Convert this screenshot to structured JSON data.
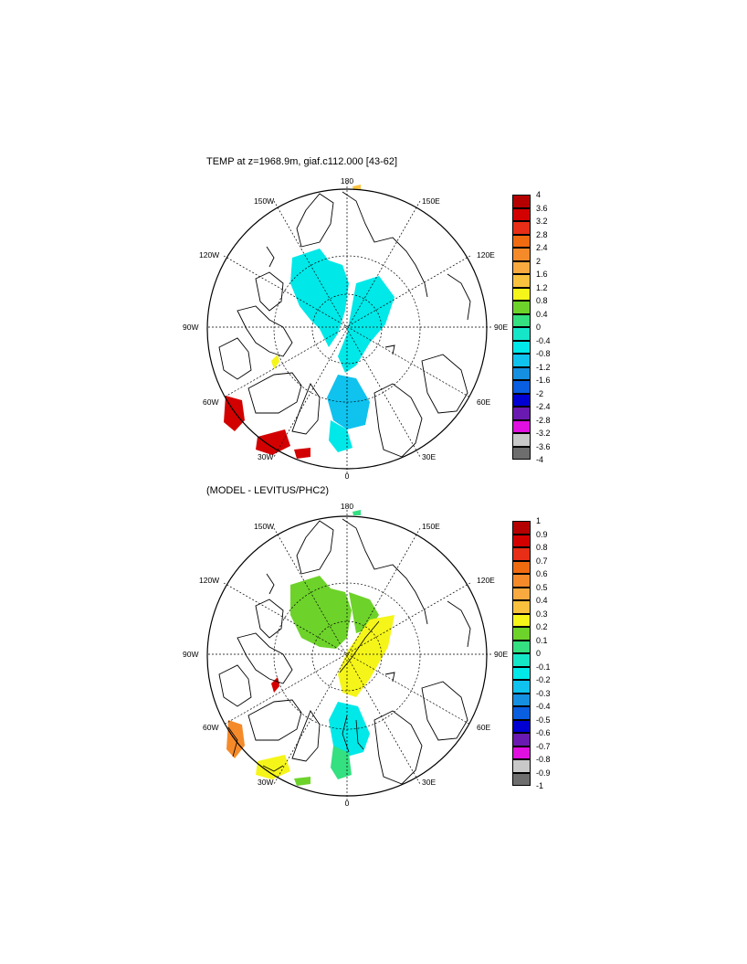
{
  "panels": [
    {
      "title": "TEMP at z=1968.9m, giaf.c112.000 [43-62]",
      "labels": {
        "top": "180",
        "bottom": "0",
        "left": "90W",
        "right": "90E",
        "w150": "150W",
        "w120": "120W",
        "w60": "60W",
        "w30": "30W",
        "e150": "150E",
        "e120": "120E",
        "e60": "60E",
        "e30": "30E"
      },
      "colorbar": {
        "ticks": [
          "4",
          "3.6",
          "3.2",
          "2.8",
          "2.4",
          "2",
          "1.6",
          "1.2",
          "0.8",
          "0.4",
          "0",
          "-0.4",
          "-0.8",
          "-1.2",
          "-1.6",
          "-2",
          "-2.4",
          "-2.8",
          "-3.2",
          "-3.6",
          "-4"
        ],
        "colors": [
          "#b40000",
          "#d30000",
          "#e82e16",
          "#f06a10",
          "#f58a2a",
          "#f8aa40",
          "#f9c23e",
          "#f5f51a",
          "#6dd32a",
          "#34e080",
          "#16e6c8",
          "#00e8e8",
          "#10c2ee",
          "#1590e0",
          "#0a5ee0",
          "#0000d2",
          "#6a1ab0",
          "#e010e0",
          "#c8c8c8",
          "#6e6e6e"
        ]
      }
    },
    {
      "title": "(MODEL - LEVITUS/PHC2)",
      "labels": {
        "top": "180",
        "bottom": "0",
        "left": "90W",
        "right": "90E",
        "w150": "150W",
        "w120": "120W",
        "w60": "60W",
        "w30": "30W",
        "e150": "150E",
        "e120": "120E",
        "e60": "60E",
        "e30": "30E"
      },
      "colorbar": {
        "ticks": [
          "1",
          "0.9",
          "0.8",
          "0.7",
          "0.6",
          "0.5",
          "0.4",
          "0.3",
          "0.2",
          "0.1",
          "0",
          "-0.1",
          "-0.2",
          "-0.3",
          "-0.4",
          "-0.5",
          "-0.6",
          "-0.7",
          "-0.8",
          "-0.9",
          "-1"
        ],
        "colors": [
          "#b40000",
          "#d30000",
          "#e82e16",
          "#f06a10",
          "#f58a2a",
          "#f8aa40",
          "#f9c23e",
          "#f5f51a",
          "#6dd32a",
          "#34e080",
          "#16e6c8",
          "#00e8e8",
          "#10c2ee",
          "#1590e0",
          "#0a5ee0",
          "#0000d2",
          "#6a1ab0",
          "#e010e0",
          "#c8c8c8",
          "#6e6e6e"
        ]
      }
    }
  ],
  "fills": {
    "cyan": "#00e8e8",
    "blue": "#10c2ee",
    "red": "#d30000",
    "yellow": "#f5f51a",
    "green": "#6dd32a"
  }
}
